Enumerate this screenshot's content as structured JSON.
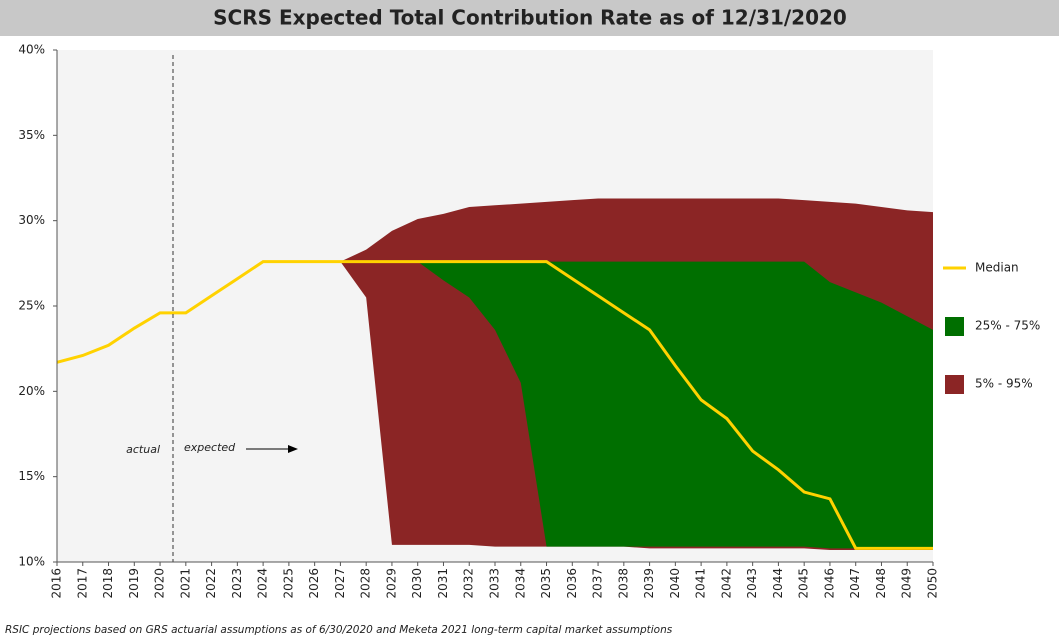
{
  "chart_data": {
    "type": "area-band",
    "title": "SCRS Expected Total Contribution Rate as of 12/31/2020",
    "footnote": "RSIC projections based on GRS actuarial assumptions as of 6/30/2020 and Meketa 2021 long-term capital market assumptions",
    "annotations": [
      "actual",
      "expected"
    ],
    "categories": [
      "2016",
      "2017",
      "2018",
      "2019",
      "2020",
      "2021",
      "2022",
      "2023",
      "2024",
      "2025",
      "2026",
      "2027",
      "2028",
      "2029",
      "2030",
      "2031",
      "2032",
      "2033",
      "2034",
      "2035",
      "2036",
      "2037",
      "2038",
      "2039",
      "2040",
      "2041",
      "2042",
      "2043",
      "2044",
      "2045",
      "2046",
      "2047",
      "2048",
      "2049",
      "2050"
    ],
    "ylim": [
      10,
      40
    ],
    "yticks": [
      {
        "value": 10,
        "label": "10%"
      },
      {
        "value": 15,
        "label": "15%"
      },
      {
        "value": 20,
        "label": "20%"
      },
      {
        "value": 25,
        "label": "25%"
      },
      {
        "value": 30,
        "label": "30%"
      },
      {
        "value": 35,
        "label": "35%"
      },
      {
        "value": 40,
        "label": "40%"
      }
    ],
    "series": [
      {
        "name": "5% - 95%",
        "color": "#8b2525",
        "high": [
          null,
          null,
          null,
          null,
          null,
          null,
          null,
          null,
          null,
          null,
          null,
          27.6,
          28.3,
          29.4,
          30.1,
          30.4,
          30.8,
          30.9,
          31.0,
          31.1,
          31.2,
          31.3,
          31.3,
          31.3,
          31.3,
          31.3,
          31.3,
          31.3,
          31.3,
          31.2,
          31.1,
          31.0,
          30.8,
          30.6,
          30.5
        ],
        "low": [
          null,
          null,
          null,
          null,
          null,
          null,
          null,
          null,
          null,
          null,
          null,
          27.6,
          25.5,
          11.0,
          11.0,
          11.0,
          11.0,
          10.9,
          10.9,
          10.9,
          10.9,
          10.9,
          10.9,
          10.8,
          10.8,
          10.8,
          10.8,
          10.8,
          10.8,
          10.8,
          10.7,
          10.7,
          10.7,
          10.7,
          10.7
        ]
      },
      {
        "name": "25% - 75%",
        "color": "#006f00",
        "high": [
          null,
          null,
          null,
          null,
          null,
          null,
          null,
          null,
          null,
          null,
          null,
          null,
          null,
          null,
          27.6,
          27.6,
          27.6,
          27.6,
          27.6,
          27.6,
          27.6,
          27.6,
          27.6,
          27.6,
          27.6,
          27.6,
          27.6,
          27.6,
          27.6,
          27.6,
          26.4,
          25.8,
          25.2,
          24.4,
          23.6
        ],
        "low": [
          null,
          null,
          null,
          null,
          null,
          null,
          null,
          null,
          null,
          null,
          null,
          null,
          null,
          null,
          27.6,
          26.5,
          25.5,
          23.6,
          20.5,
          10.9,
          10.9,
          10.9,
          10.9,
          10.9,
          10.9,
          10.9,
          10.9,
          10.9,
          10.9,
          10.9,
          10.8,
          10.8,
          10.8,
          10.8,
          10.8
        ]
      },
      {
        "name": "Median",
        "color": "#ffd200",
        "values": [
          21.7,
          22.1,
          22.7,
          23.7,
          24.6,
          24.6,
          25.6,
          26.6,
          27.6,
          27.6,
          27.6,
          27.6,
          27.6,
          27.6,
          27.6,
          27.6,
          27.6,
          27.6,
          27.6,
          27.6,
          26.6,
          25.6,
          24.6,
          23.6,
          21.5,
          19.5,
          18.4,
          16.5,
          15.4,
          14.1,
          13.7,
          10.8,
          10.8,
          10.8,
          10.8
        ]
      }
    ],
    "legend_order": [
      "Median",
      "25% - 75%",
      "5% - 95%"
    ]
  }
}
